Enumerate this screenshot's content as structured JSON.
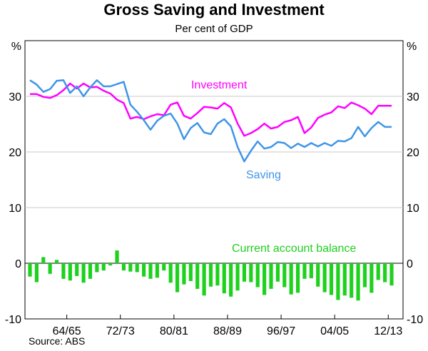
{
  "chart_data": {
    "type": "line+bar",
    "title": "Gross Saving and Investment",
    "subtitle": "Per cent of GDP",
    "unit_left": "%",
    "unit_right": "%",
    "ylim": [
      -10,
      40
    ],
    "yticks": [
      30,
      20,
      10,
      0,
      -10
    ],
    "xtick_labels": [
      "64/65",
      "72/73",
      "80/81",
      "88/89",
      "96/97",
      "04/05",
      "12/13"
    ],
    "xtick_years": [
      1964,
      1972,
      1980,
      1988,
      1996,
      2004,
      2012
    ],
    "years": [
      1959,
      1960,
      1961,
      1962,
      1963,
      1964,
      1965,
      1966,
      1967,
      1968,
      1969,
      1970,
      1971,
      1972,
      1973,
      1974,
      1975,
      1976,
      1977,
      1978,
      1979,
      1980,
      1981,
      1982,
      1983,
      1984,
      1985,
      1986,
      1987,
      1988,
      1989,
      1990,
      1991,
      1992,
      1993,
      1994,
      1995,
      1996,
      1997,
      1998,
      1999,
      2000,
      2001,
      2002,
      2003,
      2004,
      2005,
      2006,
      2007,
      2008,
      2009,
      2010,
      2011,
      2012,
      2013
    ],
    "series": [
      {
        "name": "Investment",
        "kind": "line",
        "color": "#ff00ff",
        "values": [
          30.4,
          30.4,
          29.9,
          29.7,
          30.2,
          31.1,
          32.3,
          31.4,
          32.3,
          31.6,
          31.7,
          31.0,
          30.5,
          29.4,
          28.8,
          26.0,
          26.3,
          25.9,
          26.4,
          26.8,
          26.6,
          28.5,
          28.9,
          26.5,
          26.0,
          27.0,
          28.1,
          28.0,
          27.8,
          28.8,
          28.0,
          25.1,
          22.9,
          23.4,
          24.1,
          25.1,
          24.2,
          24.5,
          25.4,
          25.7,
          26.3,
          23.4,
          24.4,
          26.1,
          26.7,
          27.1,
          28.2,
          27.9,
          28.9,
          28.4,
          27.8,
          26.8,
          28.3,
          28.3,
          28.3
        ]
      },
      {
        "name": "Saving",
        "kind": "line",
        "color": "#3f95e8",
        "values": [
          32.9,
          32.1,
          30.8,
          31.3,
          32.8,
          32.9,
          30.6,
          31.8,
          30.0,
          31.6,
          32.9,
          31.8,
          31.8,
          32.2,
          32.6,
          28.5,
          27.2,
          25.7,
          24.0,
          25.6,
          26.5,
          26.9,
          25.1,
          22.3,
          24.3,
          25.2,
          23.5,
          23.2,
          25.1,
          25.9,
          24.6,
          20.9,
          18.3,
          20.2,
          21.9,
          20.6,
          20.9,
          21.8,
          21.6,
          20.7,
          21.5,
          20.9,
          21.6,
          21.0,
          21.6,
          21.1,
          22.0,
          21.9,
          22.5,
          24.5,
          22.8,
          24.3,
          25.4,
          24.5,
          24.5
        ]
      },
      {
        "name": "Current account balance",
        "kind": "bar",
        "color": "#1dd11d",
        "values": [
          -2.4,
          -3.4,
          1.1,
          -1.9,
          0.6,
          -2.8,
          -3.1,
          -2.3,
          -3.5,
          -2.8,
          -1.6,
          -1.3,
          -0.4,
          2.3,
          -1.3,
          -1.5,
          -1.6,
          -2.4,
          -2.8,
          -2.6,
          -1.3,
          -3.5,
          -5.2,
          -3.8,
          -3.2,
          -4.6,
          -5.8,
          -4.2,
          -4.0,
          -5.4,
          -6.0,
          -4.9,
          -3.3,
          -3.4,
          -4.3,
          -5.7,
          -4.6,
          -3.3,
          -4.3,
          -5.6,
          -5.3,
          -2.8,
          -2.7,
          -4.2,
          -5.2,
          -5.7,
          -6.6,
          -5.8,
          -6.2,
          -6.7,
          -4.3,
          -5.3,
          -3.0,
          -3.4,
          -4.0
        ]
      }
    ],
    "source": "Source: ABS"
  }
}
